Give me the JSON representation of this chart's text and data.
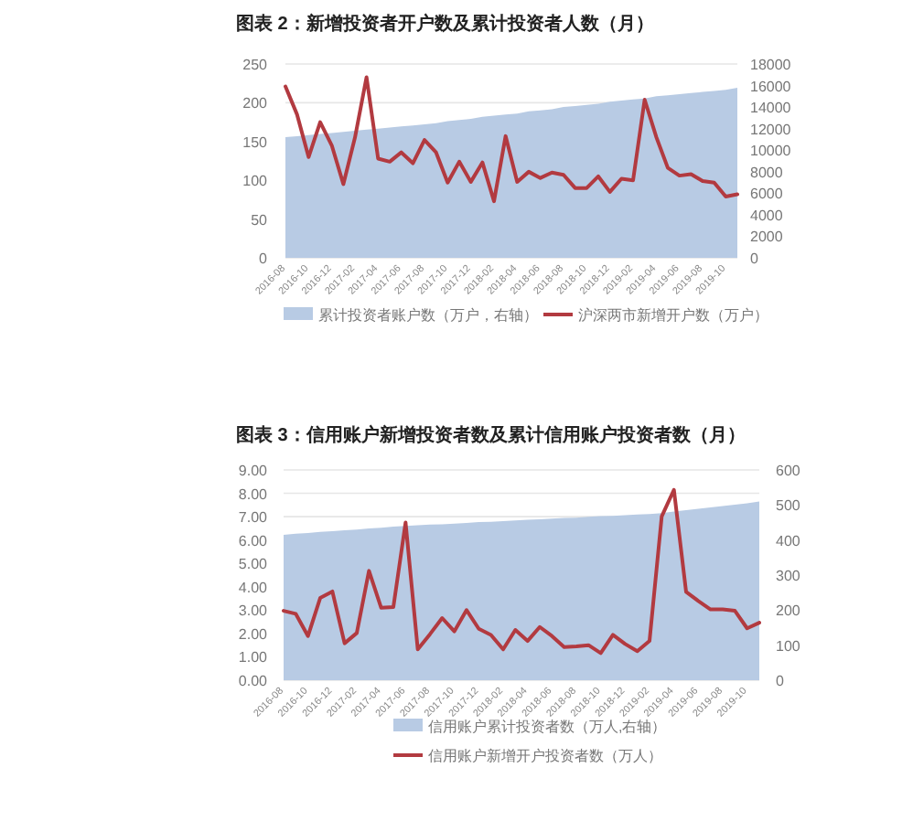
{
  "chart_data": [
    {
      "type": "line",
      "title": "图表 2：新增投资者开户数及累计投资者人数（月）",
      "categories": [
        "2016-08",
        null,
        "2016-10",
        null,
        "2016-12",
        null,
        "2017-02",
        null,
        "2017-04",
        null,
        "2017-06",
        null,
        "2017-08",
        null,
        "2017-10",
        null,
        "2017-12",
        null,
        "2018-02",
        null,
        "2018-04",
        null,
        "2018-06",
        null,
        "2018-08",
        null,
        "2018-10",
        null,
        "2018-12",
        null,
        "2019-02",
        null,
        "2019-04",
        null,
        "2019-06",
        null,
        "2019-08",
        null,
        "2019-10",
        null
      ],
      "series": [
        {
          "name": "累计投资者账户数（万户，右轴）",
          "type": "area",
          "axis": "y2",
          "color": "#b8cbe4",
          "values": [
            11200,
            11300,
            11400,
            11500,
            11600,
            11700,
            11800,
            11900,
            12000,
            12100,
            12200,
            12300,
            12400,
            12500,
            12700,
            12800,
            12900,
            13100,
            13200,
            13300,
            13400,
            13600,
            13700,
            13800,
            14000,
            14100,
            14200,
            14300,
            14500,
            14600,
            14700,
            14800,
            15000,
            15100,
            15200,
            15300,
            15400,
            15500,
            15600,
            15800
          ]
        },
        {
          "name": "沪深两市新增开户数（万户）",
          "color": "#b23a40",
          "values": [
            221,
            185,
            130,
            175,
            145,
            95,
            155,
            233,
            128,
            124,
            136,
            122,
            152,
            136,
            97,
            124,
            98,
            123,
            73,
            157,
            98,
            111,
            103,
            110,
            107,
            90,
            90,
            105,
            85,
            102,
            100,
            204,
            156,
            116,
            106,
            108,
            99,
            97,
            79,
            82
          ]
        }
      ],
      "ylim": [
        0,
        250
      ],
      "yticks": [
        0,
        50,
        100,
        150,
        200,
        250
      ],
      "y2lim": [
        0,
        18000
      ],
      "y2ticks": [
        0,
        2000,
        4000,
        6000,
        8000,
        10000,
        12000,
        14000,
        16000,
        18000
      ],
      "grid": "y",
      "legend": "bottom"
    },
    {
      "type": "line",
      "title": "图表 3：信用账户新增投资者数及累计信用账户投资者数（月）",
      "categories": [
        "2016-08",
        null,
        "2016-10",
        null,
        "2016-12",
        null,
        "2017-02",
        null,
        "2017-04",
        null,
        "2017-06",
        null,
        "2017-08",
        null,
        "2017-10",
        null,
        "2017-12",
        null,
        "2018-02",
        null,
        "2018-04",
        null,
        "2018-06",
        null,
        "2018-08",
        null,
        "2018-10",
        null,
        "2018-12",
        null,
        "2019-02",
        null,
        "2019-04",
        null,
        "2019-06",
        null,
        "2019-08",
        null,
        "2019-10",
        null
      ],
      "series": [
        {
          "name": "信用账户累计投资者数（万人,右轴）",
          "type": "area",
          "axis": "y2",
          "color": "#b8cbe4",
          "values": [
            415,
            418,
            420,
            423,
            425,
            428,
            430,
            433,
            435,
            438,
            440,
            442,
            444,
            445,
            447,
            449,
            451,
            452,
            454,
            456,
            458,
            459,
            461,
            463,
            464,
            466,
            468,
            469,
            471,
            473,
            474,
            477,
            481,
            485,
            489,
            493,
            497,
            501,
            505,
            510
          ]
        },
        {
          "name": "信用账户新增开户投资者数（万人）",
          "color": "#b23a40",
          "values": [
            2.97,
            2.84,
            1.89,
            3.52,
            3.8,
            1.58,
            2.02,
            4.68,
            3.1,
            3.13,
            6.75,
            1.32,
            1.97,
            2.66,
            2.09,
            3.0,
            2.2,
            1.94,
            1.32,
            2.15,
            1.68,
            2.28,
            1.89,
            1.42,
            1.45,
            1.5,
            1.16,
            1.94,
            1.55,
            1.24,
            1.68,
            7.01,
            8.15,
            3.78,
            3.39,
            3.03,
            3.03,
            2.97,
            2.22,
            2.46
          ]
        }
      ],
      "ylim": [
        0,
        9
      ],
      "yticks": [
        {
          "value": 0,
          "label": "0.00"
        },
        {
          "value": 1,
          "label": "1.00"
        },
        {
          "value": 2,
          "label": "2.00"
        },
        {
          "value": 3,
          "label": "3.00"
        },
        {
          "value": 4,
          "label": "4.00"
        },
        {
          "value": 5,
          "label": "5.00"
        },
        {
          "value": 6,
          "label": "6.00"
        },
        {
          "value": 7,
          "label": "7.00"
        },
        {
          "value": 8,
          "label": "8.00"
        },
        {
          "value": 9,
          "label": "9.00"
        }
      ],
      "y2lim": [
        0,
        600
      ],
      "y2ticks": [
        0,
        100,
        200,
        300,
        400,
        500,
        600
      ],
      "grid": "y",
      "legend": "bottom"
    }
  ]
}
